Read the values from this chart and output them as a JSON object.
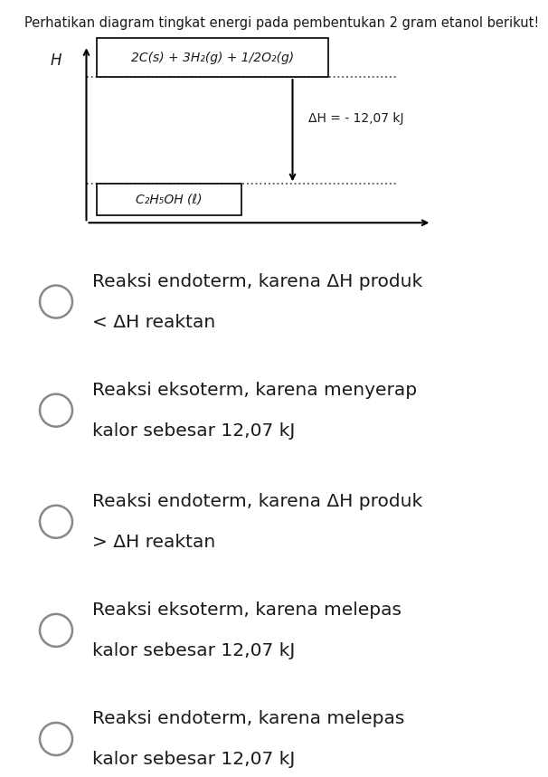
{
  "title": "Perhatikan diagram tingkat energi pada pembentukan 2 gram etanol berikut!",
  "title_fontsize": 10.5,
  "bg_color": "#ffffff",
  "text_color": "#1a1a1a",
  "reactant_label": "2C(s) + 3H₂(g) + 1/2O₂(g)",
  "product_label": "C₂H₅OH (ℓ)",
  "delta_h_label": "ΔH = - 12,07 kJ",
  "y_axis_label": "H",
  "options": [
    [
      "Reaksi endoterm, karena ΔH produk",
      "< ΔH reaktan"
    ],
    [
      "Reaksi eksoterm, karena menyerap",
      "kalor sebesar 12,07 kJ"
    ],
    [
      "Reaksi endoterm, karena ΔH produk",
      "> ΔH reaktan"
    ],
    [
      "Reaksi eksoterm, karena melepas",
      "kalor sebesar 12,07 kJ"
    ],
    [
      "Reaksi endoterm, karena melepas",
      "kalor sebesar 12,07 kJ"
    ]
  ],
  "option_fontsize": 14.5,
  "circle_color": "#888888",
  "circle_lw": 1.8
}
